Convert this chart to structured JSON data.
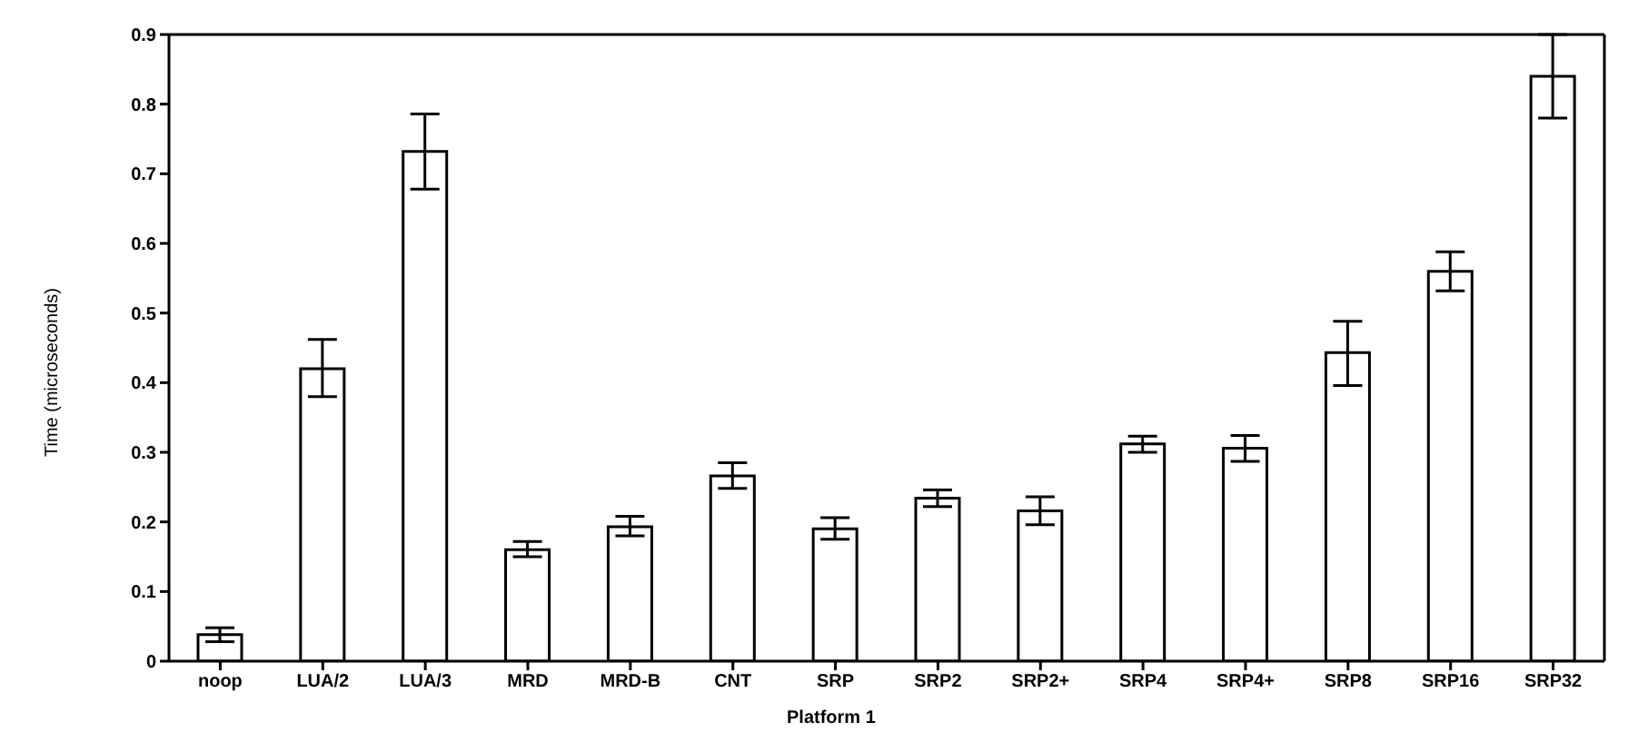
{
  "chart_data": {
    "type": "bar",
    "xlabel": "Platform 1",
    "ylabel": "Time (microseconds)",
    "categories": [
      "noop",
      "LUA/2",
      "LUA/3",
      "MRD",
      "MRD-B",
      "CNT",
      "SRP",
      "SRP2",
      "SRP2+",
      "SRP4",
      "SRP4+",
      "SRP8",
      "SRP16",
      "SRP32"
    ],
    "values": [
      0.038,
      0.42,
      0.732,
      0.16,
      0.193,
      0.266,
      0.19,
      0.234,
      0.216,
      0.312,
      0.306,
      0.443,
      0.56,
      0.84
    ],
    "errors": [
      0.01,
      [
        0.38,
        0.462
      ],
      [
        0.678,
        0.786
      ],
      [
        0.15,
        0.172
      ],
      [
        0.18,
        0.208
      ],
      [
        0.248,
        0.285
      ],
      [
        0.175,
        0.206
      ],
      [
        0.222,
        0.246
      ],
      [
        0.196,
        0.236
      ],
      [
        0.3,
        0.323
      ],
      [
        0.287,
        0.324
      ],
      [
        0.396,
        0.488
      ],
      [
        0.532,
        0.588
      ],
      [
        0.78,
        0.9
      ]
    ],
    "color": "#ffffff",
    "ylim": [
      0,
      0.9
    ],
    "yticks": [
      0,
      0.1,
      0.2,
      0.3,
      0.4,
      0.5,
      0.6,
      0.7,
      0.8,
      0.9
    ],
    "grid": false
  }
}
